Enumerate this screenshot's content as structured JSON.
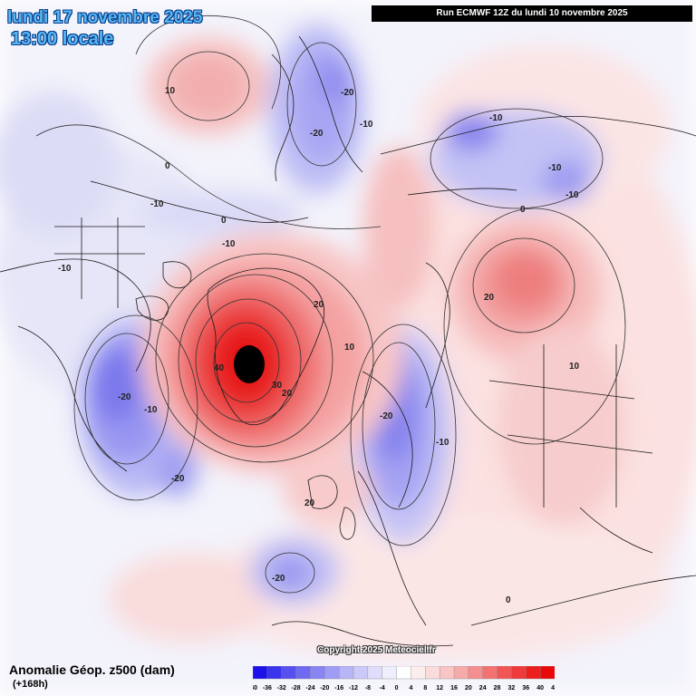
{
  "header": {
    "date": "lundi 17 novembre 2025",
    "time": "13:00 locale",
    "run": "Run ECMWF 12Z du lundi 10 novembre 2025"
  },
  "footer": {
    "title": "Anomalie Géop. z500 (dam)",
    "lead": "(+168h)",
    "copyright": "Copyright 2025 Meteociel.fr"
  },
  "legend": {
    "labels": [
      "-40",
      "-36",
      "-32",
      "-28",
      "-24",
      "-20",
      "-16",
      "-12",
      "-8",
      "-4",
      "0",
      "4",
      "8",
      "12",
      "16",
      "20",
      "24",
      "28",
      "32",
      "36",
      "40",
      "44"
    ],
    "colors": [
      "#1a12e8",
      "#3a34ec",
      "#5650ef",
      "#6e6af1",
      "#8784f3",
      "#9f9cf5",
      "#b7b4f7",
      "#cbc9f9",
      "#dfddfb",
      "#efeefd",
      "#ffffff",
      "#fdeeee",
      "#fbdcdc",
      "#f9c5c5",
      "#f7aaaa",
      "#f58f8f",
      "#f37272",
      "#f05656",
      "#ee3a3a",
      "#ec1f1f",
      "#e80a0a"
    ]
  },
  "contour_labels": [
    "10",
    "-20",
    "-20",
    "-10",
    "-10",
    "-10",
    "-10",
    "-10",
    "0",
    "0",
    "-10",
    "-10",
    "0",
    "20",
    "20",
    "10",
    "40",
    "30",
    "20",
    "-20",
    "-20",
    "-20",
    "-10",
    "-20",
    "10",
    "20",
    "-10",
    "0"
  ],
  "colors": {
    "title": "#55b8f0",
    "positive_strong": "#e41414",
    "negative_strong": "#3030e0"
  }
}
